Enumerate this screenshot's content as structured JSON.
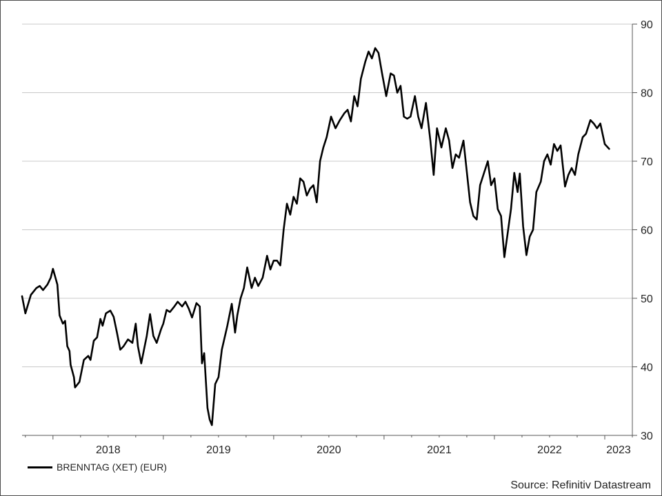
{
  "chart_data": {
    "type": "line",
    "title": "",
    "xlabel": "",
    "ylabel": "",
    "ylim": [
      30,
      90
    ],
    "yticks": [
      30,
      40,
      50,
      60,
      70,
      80,
      90
    ],
    "y_axis_side": "right",
    "grid": "horizontal",
    "legend_position": "bottom-left",
    "x_range": [
      2017.72,
      2023.25
    ],
    "x_tick_labels": [
      {
        "label": "2018",
        "x": 2018.0
      },
      {
        "label": "2019",
        "x": 2019.0
      },
      {
        "label": "2020",
        "x": 2020.0
      },
      {
        "label": "2021",
        "x": 2021.0
      },
      {
        "label": "2022",
        "x": 2022.0
      },
      {
        "label": "2023",
        "x": 2023.0
      }
    ],
    "series": [
      {
        "name": "BRENNTAG (XET) (EUR)",
        "color": "#000000",
        "points": [
          [
            2017.72,
            50.3
          ],
          [
            2017.75,
            47.8
          ],
          [
            2017.8,
            50.5
          ],
          [
            2017.85,
            51.5
          ],
          [
            2017.88,
            51.8
          ],
          [
            2017.91,
            51.2
          ],
          [
            2017.95,
            52.0
          ],
          [
            2017.98,
            53.0
          ],
          [
            2018.0,
            54.3
          ],
          [
            2018.04,
            52.0
          ],
          [
            2018.06,
            47.5
          ],
          [
            2018.09,
            46.3
          ],
          [
            2018.11,
            46.7
          ],
          [
            2018.13,
            43.0
          ],
          [
            2018.15,
            42.3
          ],
          [
            2018.16,
            40.3
          ],
          [
            2018.19,
            38.5
          ],
          [
            2018.2,
            37.0
          ],
          [
            2018.24,
            37.8
          ],
          [
            2018.28,
            41.0
          ],
          [
            2018.32,
            41.6
          ],
          [
            2018.34,
            41.0
          ],
          [
            2018.37,
            43.8
          ],
          [
            2018.4,
            44.3
          ],
          [
            2018.43,
            47.0
          ],
          [
            2018.45,
            46.0
          ],
          [
            2018.48,
            47.8
          ],
          [
            2018.52,
            48.2
          ],
          [
            2018.55,
            47.3
          ],
          [
            2018.58,
            45.0
          ],
          [
            2018.61,
            42.5
          ],
          [
            2018.64,
            43.0
          ],
          [
            2018.68,
            44.0
          ],
          [
            2018.72,
            43.5
          ],
          [
            2018.75,
            46.3
          ],
          [
            2018.77,
            43.0
          ],
          [
            2018.8,
            40.5
          ],
          [
            2018.85,
            44.5
          ],
          [
            2018.88,
            47.7
          ],
          [
            2018.91,
            44.5
          ],
          [
            2018.94,
            43.5
          ],
          [
            2018.98,
            45.5
          ],
          [
            2019.0,
            46.3
          ],
          [
            2019.03,
            48.3
          ],
          [
            2019.06,
            48.0
          ],
          [
            2019.1,
            48.8
          ],
          [
            2019.13,
            49.5
          ],
          [
            2019.17,
            48.8
          ],
          [
            2019.2,
            49.5
          ],
          [
            2019.23,
            48.5
          ],
          [
            2019.26,
            47.2
          ],
          [
            2019.3,
            49.3
          ],
          [
            2019.33,
            48.8
          ],
          [
            2019.35,
            40.5
          ],
          [
            2019.37,
            42.0
          ],
          [
            2019.4,
            34.0
          ],
          [
            2019.42,
            32.3
          ],
          [
            2019.44,
            31.5
          ],
          [
            2019.47,
            37.5
          ],
          [
            2019.5,
            38.5
          ],
          [
            2019.53,
            42.5
          ],
          [
            2019.58,
            46.0
          ],
          [
            2019.62,
            49.2
          ],
          [
            2019.65,
            45.0
          ],
          [
            2019.67,
            47.5
          ],
          [
            2019.7,
            50.0
          ],
          [
            2019.73,
            51.5
          ],
          [
            2019.76,
            54.5
          ],
          [
            2019.8,
            51.5
          ],
          [
            2019.83,
            53.0
          ],
          [
            2019.86,
            51.8
          ],
          [
            2019.9,
            53.0
          ],
          [
            2019.94,
            56.2
          ],
          [
            2019.97,
            54.2
          ],
          [
            2020.0,
            55.5
          ],
          [
            2020.03,
            55.5
          ],
          [
            2020.06,
            54.8
          ],
          [
            2020.09,
            60.0
          ],
          [
            2020.12,
            63.8
          ],
          [
            2020.15,
            62.2
          ],
          [
            2020.18,
            64.8
          ],
          [
            2020.21,
            63.8
          ],
          [
            2020.24,
            67.5
          ],
          [
            2020.27,
            67.0
          ],
          [
            2020.3,
            65.0
          ],
          [
            2020.33,
            66.0
          ],
          [
            2020.36,
            66.5
          ],
          [
            2020.39,
            64.0
          ],
          [
            2020.42,
            70.0
          ],
          [
            2020.45,
            72.0
          ],
          [
            2020.48,
            73.5
          ],
          [
            2020.52,
            76.5
          ],
          [
            2020.56,
            74.8
          ],
          [
            2020.6,
            76.0
          ],
          [
            2020.64,
            77.0
          ],
          [
            2020.67,
            77.5
          ],
          [
            2020.7,
            75.8
          ],
          [
            2020.73,
            79.5
          ],
          [
            2020.76,
            78.0
          ],
          [
            2020.79,
            82.0
          ],
          [
            2020.83,
            84.5
          ],
          [
            2020.86,
            86.0
          ],
          [
            2020.89,
            85.0
          ],
          [
            2020.92,
            86.5
          ],
          [
            2020.95,
            85.8
          ],
          [
            2020.98,
            83.0
          ],
          [
            2021.02,
            79.5
          ],
          [
            2021.06,
            82.8
          ],
          [
            2021.09,
            82.5
          ],
          [
            2021.12,
            80.0
          ],
          [
            2021.15,
            81.0
          ],
          [
            2021.18,
            76.5
          ],
          [
            2021.21,
            76.2
          ],
          [
            2021.24,
            76.5
          ],
          [
            2021.28,
            79.5
          ],
          [
            2021.31,
            76.5
          ],
          [
            2021.34,
            74.8
          ],
          [
            2021.38,
            78.5
          ],
          [
            2021.42,
            73.0
          ],
          [
            2021.45,
            68.0
          ],
          [
            2021.48,
            74.8
          ],
          [
            2021.52,
            72.0
          ],
          [
            2021.56,
            74.8
          ],
          [
            2021.59,
            73.0
          ],
          [
            2021.62,
            69.0
          ],
          [
            2021.65,
            71.0
          ],
          [
            2021.68,
            70.5
          ],
          [
            2021.72,
            73.0
          ],
          [
            2021.75,
            68.5
          ],
          [
            2021.78,
            64.0
          ],
          [
            2021.81,
            62.0
          ],
          [
            2021.84,
            61.5
          ],
          [
            2021.87,
            66.5
          ],
          [
            2021.9,
            68.0
          ],
          [
            2021.94,
            70.0
          ],
          [
            2021.97,
            66.5
          ],
          [
            2022.0,
            67.5
          ],
          [
            2022.03,
            63.0
          ],
          [
            2022.06,
            62.0
          ],
          [
            2022.09,
            56.0
          ],
          [
            2022.12,
            59.5
          ],
          [
            2022.15,
            63.0
          ],
          [
            2022.18,
            68.3
          ],
          [
            2022.21,
            65.5
          ],
          [
            2022.23,
            68.2
          ],
          [
            2022.26,
            60.5
          ],
          [
            2022.29,
            56.3
          ],
          [
            2022.32,
            59.0
          ],
          [
            2022.35,
            60.0
          ],
          [
            2022.38,
            65.5
          ],
          [
            2022.42,
            67.0
          ],
          [
            2022.45,
            70.0
          ],
          [
            2022.48,
            71.0
          ],
          [
            2022.51,
            69.5
          ],
          [
            2022.54,
            72.5
          ],
          [
            2022.57,
            71.5
          ],
          [
            2022.6,
            72.3
          ],
          [
            2022.64,
            66.3
          ],
          [
            2022.67,
            68.0
          ],
          [
            2022.7,
            69.0
          ],
          [
            2022.73,
            68.0
          ],
          [
            2022.76,
            71.0
          ],
          [
            2022.8,
            73.5
          ],
          [
            2022.83,
            74.0
          ],
          [
            2022.87,
            76.0
          ],
          [
            2022.9,
            75.5
          ],
          [
            2022.93,
            74.8
          ],
          [
            2022.96,
            75.5
          ],
          [
            2023.0,
            72.5
          ],
          [
            2023.04,
            71.8
          ]
        ]
      }
    ],
    "source": "Source: Refinitiv Datastream"
  }
}
